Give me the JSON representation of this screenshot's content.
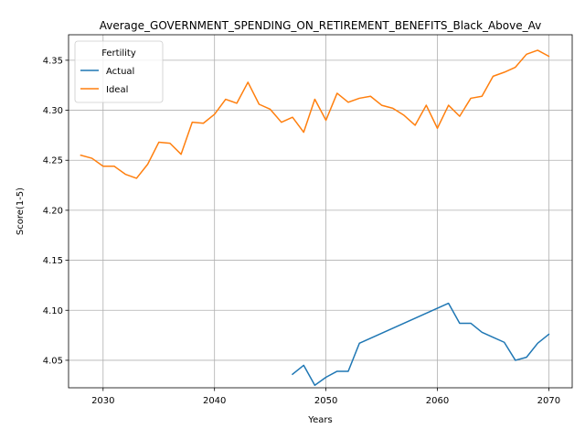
{
  "chart_data": {
    "type": "line",
    "title": "Average_GOVERNMENT_SPENDING_ON_RETIREMENT_BENEFITS_Black_Above_Av",
    "xlabel": "Years",
    "ylabel": "Score(1-5)",
    "xlim": [
      2026.9,
      2072.1
    ],
    "ylim": [
      4.0225,
      4.3755
    ],
    "xticks": [
      2030,
      2040,
      2050,
      2060,
      2070
    ],
    "yticks": [
      4.05,
      4.1,
      4.15,
      4.2,
      4.25,
      4.3,
      4.35
    ],
    "xtick_labels": [
      "2030",
      "2040",
      "2050",
      "2060",
      "2070"
    ],
    "ytick_labels": [
      "4.05",
      "4.10",
      "4.15",
      "4.20",
      "4.25",
      "4.30",
      "4.35"
    ],
    "grid": true,
    "legend": {
      "title": "Fertility",
      "position": "top-left"
    },
    "series": [
      {
        "name": "Actual",
        "color": "#1f77b4",
        "x": [
          2047,
          2048,
          2049,
          2050,
          2051,
          2052,
          2053,
          2061,
          2062,
          2063,
          2064,
          2065,
          2066,
          2067,
          2068,
          2069,
          2070
        ],
        "y": [
          4.036,
          4.045,
          4.025,
          4.033,
          4.039,
          4.039,
          4.067,
          4.107,
          4.087,
          4.087,
          4.078,
          4.073,
          4.068,
          4.05,
          4.053,
          4.067,
          4.076
        ]
      },
      {
        "name": "Ideal",
        "color": "#ff7f0e",
        "x": [
          2028,
          2029,
          2030,
          2031,
          2032,
          2033,
          2034,
          2035,
          2036,
          2037,
          2038,
          2039,
          2040,
          2041,
          2042,
          2043,
          2044,
          2045,
          2046,
          2047,
          2048,
          2049,
          2050,
          2051,
          2052,
          2053,
          2054,
          2055,
          2056,
          2057,
          2058,
          2059,
          2060,
          2061,
          2062,
          2063,
          2064,
          2065,
          2066,
          2067,
          2068,
          2069,
          2070
        ],
        "y": [
          4.255,
          4.252,
          4.244,
          4.244,
          4.236,
          4.232,
          4.246,
          4.268,
          4.267,
          4.256,
          4.288,
          4.287,
          4.296,
          4.311,
          4.307,
          4.328,
          4.306,
          4.301,
          4.288,
          4.293,
          4.278,
          4.311,
          4.29,
          4.317,
          4.308,
          4.312,
          4.314,
          4.305,
          4.302,
          4.295,
          4.285,
          4.305,
          4.282,
          4.305,
          4.294,
          4.312,
          4.314,
          4.334,
          4.338,
          4.343,
          4.356,
          4.36,
          4.354
        ]
      }
    ]
  }
}
